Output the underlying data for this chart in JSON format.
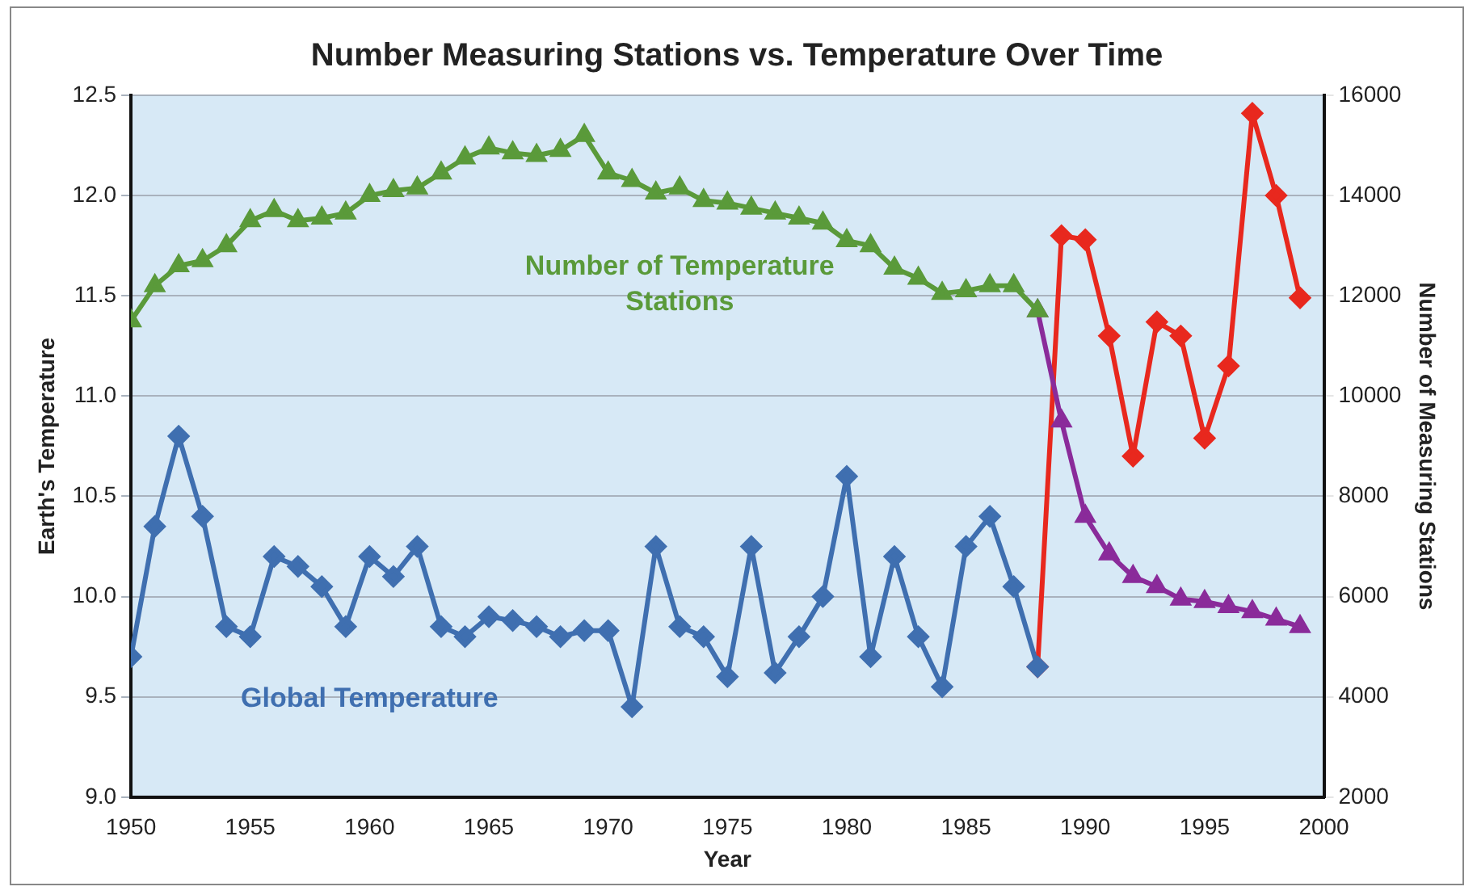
{
  "chart_data": {
    "type": "line",
    "title": "Number Measuring Stations vs. Temperature Over Time",
    "xlabel": "Year",
    "ylabel": "Earth's Temperature",
    "y2label": "Number of Measuring Stations",
    "x": [
      1950,
      1951,
      1952,
      1953,
      1954,
      1955,
      1956,
      1957,
      1958,
      1959,
      1960,
      1961,
      1962,
      1963,
      1964,
      1965,
      1966,
      1967,
      1968,
      1969,
      1970,
      1971,
      1972,
      1973,
      1974,
      1975,
      1976,
      1977,
      1978,
      1979,
      1980,
      1981,
      1982,
      1983,
      1984,
      1985,
      1986,
      1987,
      1988
    ],
    "series": [
      {
        "name": "Number of Temperature Stations",
        "axis": "y2",
        "marker": "triangle",
        "color": "#5a9a3a",
        "values": [
          11500,
          12200,
          12600,
          12700,
          13000,
          13500,
          13700,
          13500,
          13550,
          13650,
          14000,
          14100,
          14150,
          14450,
          14750,
          14950,
          14850,
          14800,
          14900,
          15200,
          14450,
          14300,
          14050,
          14150,
          13900,
          13850,
          13750,
          13650,
          13550,
          13450,
          13100,
          13000,
          12550,
          12350,
          12050,
          12100,
          12200,
          12200,
          11700
        ]
      },
      {
        "axis": "y2",
        "marker": "triangle",
        "color": "#8a2b9a",
        "x": [
          1988,
          1989,
          1990,
          1991,
          1992,
          1993,
          1994,
          1995,
          1996,
          1997,
          1998,
          1999
        ],
        "values": [
          11700,
          9500,
          7600,
          6850,
          6400,
          6200,
          5950,
          5900,
          5800,
          5700,
          5550,
          5400
        ]
      },
      {
        "name": "Global Temperature",
        "marker": "diamond",
        "color": "#3f6fb0",
        "values": [
          9.7,
          10.35,
          10.8,
          10.4,
          9.85,
          9.8,
          10.2,
          10.15,
          10.05,
          9.85,
          10.2,
          10.1,
          10.25,
          9.85,
          9.8,
          9.9,
          9.88,
          9.85,
          9.8,
          9.83,
          9.83,
          9.45,
          10.25,
          9.85,
          9.8,
          9.6,
          10.25,
          9.62,
          9.8,
          10.0,
          10.6,
          9.7,
          10.2,
          9.8,
          9.55,
          10.25,
          10.4,
          10.05,
          9.65
        ]
      },
      {
        "marker": "diamond",
        "color": "#e8281e",
        "x": [
          1988,
          1989,
          1990,
          1991,
          1992,
          1993,
          1994,
          1995,
          1996,
          1997,
          1998,
          1999
        ],
        "values": [
          9.65,
          11.8,
          11.78,
          11.3,
          10.7,
          11.37,
          11.3,
          10.79,
          11.15,
          12.41,
          12.0,
          11.49
        ]
      }
    ],
    "xlim": [
      1950,
      2000
    ],
    "xticks": [
      1950,
      1955,
      1960,
      1965,
      1970,
      1975,
      1980,
      1985,
      1990,
      1995,
      2000
    ],
    "ylim": [
      9,
      12.5
    ],
    "yticks": [
      {
        "value": 9,
        "label": "9.0"
      },
      {
        "value": 9.5,
        "label": "9.5"
      },
      {
        "value": 10,
        "label": "10.0"
      },
      {
        "value": 10.5,
        "label": "10.5"
      },
      {
        "value": 11,
        "label": "11.0"
      },
      {
        "value": 11.5,
        "label": "11.5"
      },
      {
        "value": 12,
        "label": "12.0"
      },
      {
        "value": 12.5,
        "label": "12.5"
      }
    ],
    "y2lim": [
      2000,
      16000
    ],
    "y2ticks": [
      2000,
      4000,
      6000,
      8000,
      10000,
      12000,
      14000,
      16000
    ],
    "grid": "y",
    "legend": false
  }
}
